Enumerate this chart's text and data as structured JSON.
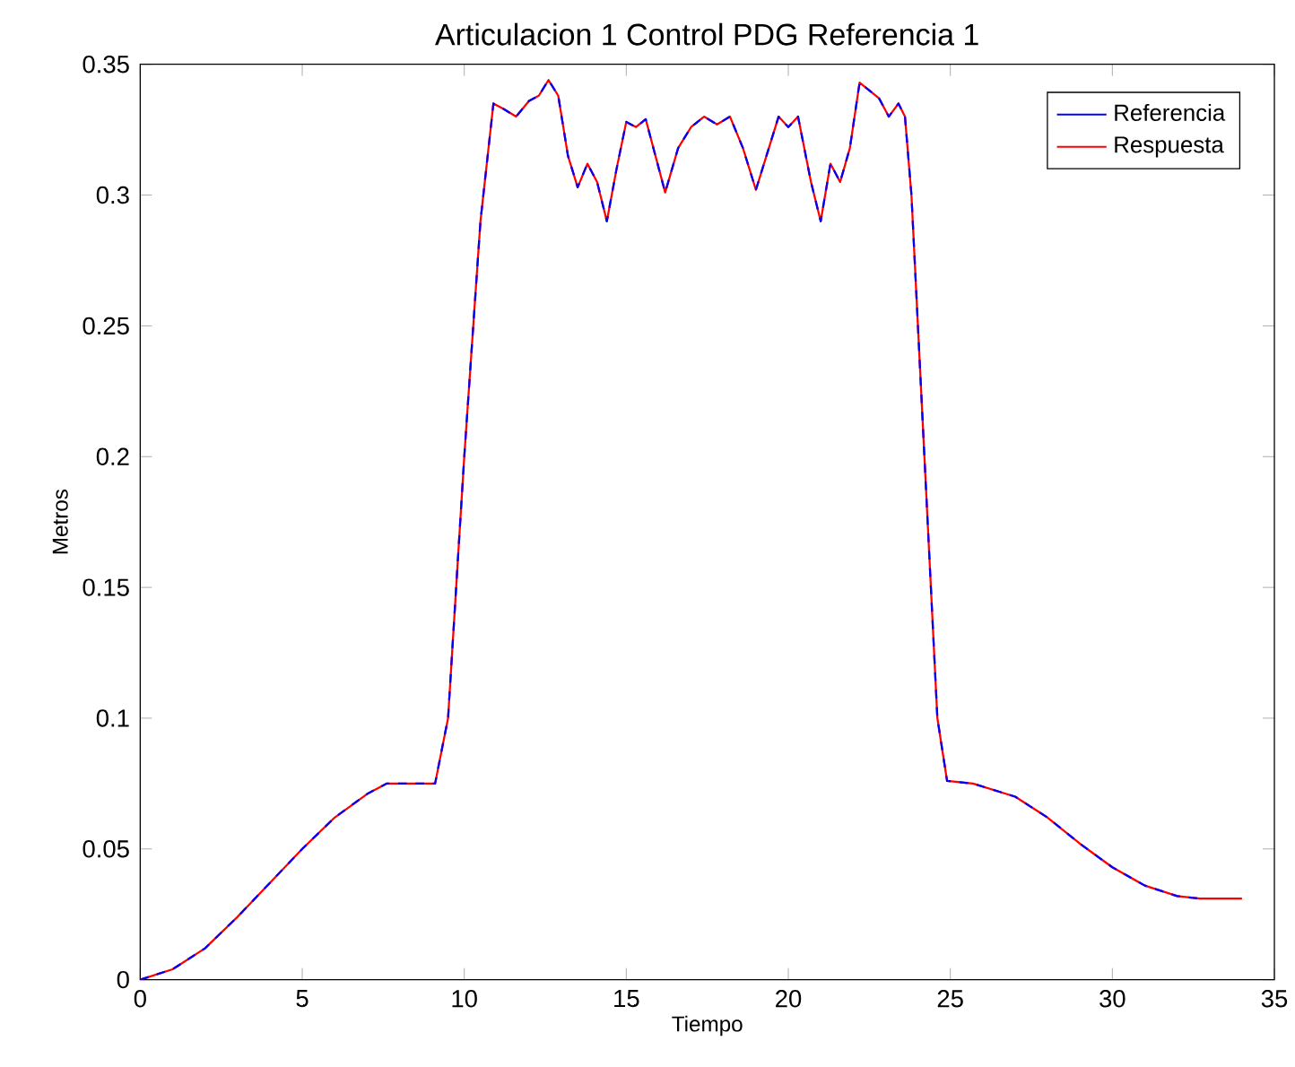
{
  "chart_data": {
    "type": "line",
    "title": "Articulacion 1 Control PDG Referencia 1",
    "xlabel": "Tiempo",
    "ylabel": "Metros",
    "xlim": [
      0,
      35
    ],
    "ylim": [
      0,
      0.35
    ],
    "xticks": [
      0,
      5,
      10,
      15,
      20,
      25,
      30,
      35
    ],
    "yticks": [
      0,
      0.05,
      0.1,
      0.15,
      0.2,
      0.25,
      0.3,
      0.35
    ],
    "legend": "top right",
    "grid": false,
    "line_style": "solid",
    "series": [
      {
        "name": "Referencia",
        "color": "#0000ff",
        "line_style": "dashed",
        "x": [
          0,
          1,
          2,
          3,
          4,
          5,
          6,
          7,
          7.6,
          9.1,
          9.5,
          10,
          10.5,
          10.9,
          11.2,
          11.6,
          12,
          12.3,
          12.6,
          12.9,
          13.2,
          13.5,
          13.8,
          14.1,
          14.4,
          14.7,
          15,
          15.3,
          15.6,
          15.9,
          16.2,
          16.6,
          17,
          17.4,
          17.8,
          18.2,
          18.6,
          19,
          19.4,
          19.7,
          20,
          20.3,
          20.7,
          21,
          21.3,
          21.6,
          21.9,
          22.2,
          22.5,
          22.8,
          23.1,
          23.4,
          23.6,
          23.8,
          24.2,
          24.6,
          24.9,
          25.7,
          27,
          28,
          29,
          30,
          31,
          32,
          32.7
        ],
        "values": [
          0,
          0.004,
          0.012,
          0.024,
          0.037,
          0.05,
          0.062,
          0.071,
          0.075,
          0.075,
          0.1,
          0.2,
          0.29,
          0.335,
          0.333,
          0.33,
          0.336,
          0.338,
          0.344,
          0.338,
          0.315,
          0.303,
          0.312,
          0.305,
          0.29,
          0.31,
          0.328,
          0.326,
          0.329,
          0.315,
          0.301,
          0.318,
          0.326,
          0.33,
          0.327,
          0.33,
          0.318,
          0.302,
          0.318,
          0.33,
          0.326,
          0.33,
          0.305,
          0.29,
          0.312,
          0.305,
          0.318,
          0.343,
          0.34,
          0.337,
          0.33,
          0.335,
          0.33,
          0.3,
          0.2,
          0.1,
          0.076,
          0.075,
          0.07,
          0.062,
          0.052,
          0.043,
          0.036,
          0.032,
          0.031
        ]
      },
      {
        "name": "Respuesta",
        "color": "#ff0000",
        "x": [
          0,
          1,
          2,
          3,
          4,
          5,
          6,
          7,
          7.6,
          9.1,
          9.5,
          10,
          10.5,
          10.9,
          11.2,
          11.6,
          12,
          12.3,
          12.6,
          12.9,
          13.2,
          13.5,
          13.8,
          14.1,
          14.4,
          14.7,
          15,
          15.3,
          15.6,
          15.9,
          16.2,
          16.6,
          17,
          17.4,
          17.8,
          18.2,
          18.6,
          19,
          19.4,
          19.7,
          20,
          20.3,
          20.7,
          21,
          21.3,
          21.6,
          21.9,
          22.2,
          22.5,
          22.8,
          23.1,
          23.4,
          23.6,
          23.8,
          24.2,
          24.6,
          24.9,
          25.7,
          27,
          28,
          29,
          30,
          31,
          32,
          32.7,
          34
        ],
        "values": [
          0,
          0.004,
          0.012,
          0.024,
          0.037,
          0.05,
          0.062,
          0.071,
          0.075,
          0.075,
          0.1,
          0.2,
          0.29,
          0.335,
          0.333,
          0.33,
          0.336,
          0.338,
          0.344,
          0.338,
          0.315,
          0.303,
          0.312,
          0.305,
          0.29,
          0.31,
          0.328,
          0.326,
          0.329,
          0.315,
          0.301,
          0.318,
          0.326,
          0.33,
          0.327,
          0.33,
          0.318,
          0.302,
          0.318,
          0.33,
          0.326,
          0.33,
          0.305,
          0.29,
          0.312,
          0.305,
          0.318,
          0.343,
          0.34,
          0.337,
          0.33,
          0.335,
          0.33,
          0.3,
          0.2,
          0.1,
          0.076,
          0.075,
          0.07,
          0.062,
          0.052,
          0.043,
          0.036,
          0.032,
          0.031,
          0.031
        ]
      }
    ]
  }
}
